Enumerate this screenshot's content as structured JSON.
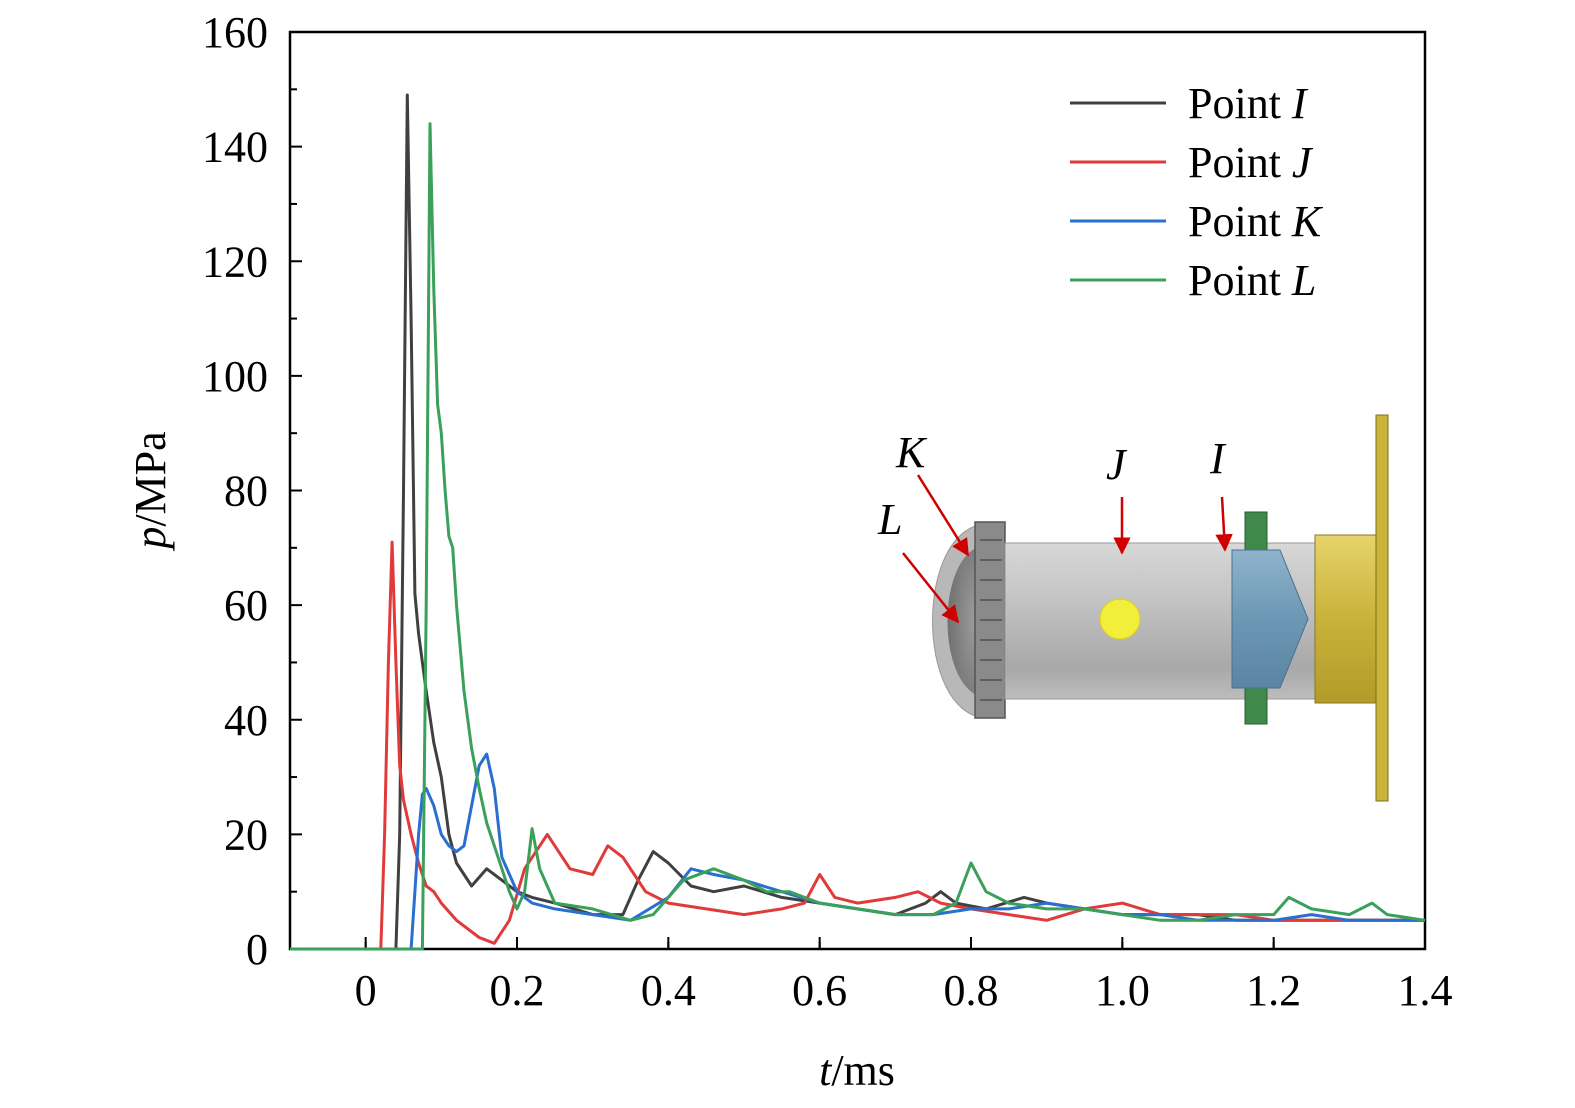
{
  "chart_data": {
    "type": "line",
    "xlabel": {
      "var": "t",
      "unit": "/ms"
    },
    "ylabel": {
      "var": "p",
      "unit": "/MPa"
    },
    "xlim": [
      -0.1,
      1.4
    ],
    "ylim": [
      0,
      160
    ],
    "x_ticks": [
      0,
      0.2,
      0.4,
      0.6,
      0.8,
      1.0,
      1.2,
      1.4
    ],
    "x_tick_labels": [
      "0",
      "0.2",
      "0.4",
      "0.6",
      "0.8",
      "1.0",
      "1.2",
      "1.4"
    ],
    "y_ticks": [
      0,
      20,
      40,
      60,
      80,
      100,
      120,
      140,
      160
    ],
    "y_tick_labels": [
      "0",
      "20",
      "40",
      "60",
      "80",
      "100",
      "120",
      "140",
      "160"
    ],
    "legend_position": "top-right",
    "grid": false,
    "series": [
      {
        "name": "Point I",
        "legend_prefix": "Point ",
        "legend_var": "I",
        "color": "#404040",
        "x": [
          -0.1,
          0.04,
          0.045,
          0.05,
          0.055,
          0.06,
          0.065,
          0.07,
          0.08,
          0.09,
          0.1,
          0.11,
          0.12,
          0.14,
          0.16,
          0.18,
          0.2,
          0.22,
          0.25,
          0.3,
          0.34,
          0.36,
          0.38,
          0.4,
          0.43,
          0.46,
          0.5,
          0.55,
          0.6,
          0.65,
          0.7,
          0.74,
          0.76,
          0.78,
          0.82,
          0.87,
          0.9,
          0.95,
          1.0,
          1.05,
          1.1,
          1.15,
          1.2,
          1.25,
          1.3,
          1.35,
          1.4
        ],
        "y": [
          0,
          0,
          20,
          80,
          149,
          110,
          62,
          55,
          45,
          36,
          30,
          20,
          15,
          11,
          14,
          12,
          10,
          9,
          8,
          6,
          6,
          12,
          17,
          15,
          11,
          10,
          11,
          9,
          8,
          7,
          6,
          8,
          10,
          8,
          7,
          9,
          8,
          7,
          6,
          6,
          6,
          5,
          5,
          5,
          5,
          5,
          5
        ]
      },
      {
        "name": "Point J",
        "legend_prefix": "Point ",
        "legend_var": "J",
        "color": "#e03a3a",
        "x": [
          -0.1,
          0.02,
          0.025,
          0.03,
          0.035,
          0.04,
          0.045,
          0.05,
          0.06,
          0.07,
          0.08,
          0.09,
          0.1,
          0.12,
          0.15,
          0.17,
          0.19,
          0.21,
          0.24,
          0.27,
          0.3,
          0.32,
          0.34,
          0.37,
          0.4,
          0.45,
          0.5,
          0.55,
          0.58,
          0.6,
          0.62,
          0.65,
          0.7,
          0.73,
          0.76,
          0.8,
          0.85,
          0.9,
          0.95,
          1.0,
          1.05,
          1.1,
          1.15,
          1.2,
          1.25,
          1.3,
          1.35,
          1.4
        ],
        "y": [
          0,
          0,
          20,
          50,
          71,
          50,
          32,
          26,
          20,
          15,
          11,
          10,
          8,
          5,
          2,
          1,
          5,
          14,
          20,
          14,
          13,
          18,
          16,
          10,
          8,
          7,
          6,
          7,
          8,
          13,
          9,
          8,
          9,
          10,
          8,
          7,
          6,
          5,
          7,
          8,
          6,
          6,
          6,
          5,
          5,
          5,
          5,
          5
        ]
      },
      {
        "name": "Point K",
        "legend_prefix": "Point ",
        "legend_var": "K",
        "color": "#2a6fcf",
        "x": [
          -0.1,
          0.06,
          0.065,
          0.07,
          0.075,
          0.08,
          0.09,
          0.1,
          0.11,
          0.12,
          0.13,
          0.14,
          0.15,
          0.16,
          0.17,
          0.18,
          0.2,
          0.22,
          0.25,
          0.3,
          0.35,
          0.4,
          0.43,
          0.46,
          0.5,
          0.55,
          0.6,
          0.65,
          0.7,
          0.75,
          0.8,
          0.85,
          0.9,
          0.95,
          1.0,
          1.05,
          1.1,
          1.15,
          1.2,
          1.25,
          1.3,
          1.35,
          1.4
        ],
        "y": [
          0,
          0,
          10,
          20,
          27,
          28,
          25,
          20,
          18,
          17,
          18,
          25,
          32,
          34,
          28,
          16,
          10,
          8,
          7,
          6,
          5,
          9,
          14,
          13,
          12,
          10,
          8,
          7,
          6,
          6,
          7,
          7,
          8,
          7,
          6,
          6,
          5,
          5,
          5,
          6,
          5,
          5,
          5
        ]
      },
      {
        "name": "Point L",
        "legend_prefix": "Point ",
        "legend_var": "L",
        "color": "#3aa05a",
        "x": [
          -0.1,
          0.075,
          0.08,
          0.085,
          0.09,
          0.095,
          0.1,
          0.105,
          0.11,
          0.115,
          0.12,
          0.13,
          0.14,
          0.15,
          0.16,
          0.17,
          0.18,
          0.19,
          0.2,
          0.21,
          0.22,
          0.23,
          0.25,
          0.3,
          0.35,
          0.38,
          0.42,
          0.46,
          0.5,
          0.53,
          0.56,
          0.6,
          0.65,
          0.7,
          0.75,
          0.78,
          0.8,
          0.82,
          0.85,
          0.9,
          0.95,
          1.0,
          1.05,
          1.1,
          1.15,
          1.2,
          1.22,
          1.25,
          1.3,
          1.33,
          1.35,
          1.4
        ],
        "y": [
          0,
          0,
          60,
          144,
          115,
          95,
          90,
          80,
          72,
          70,
          60,
          45,
          35,
          28,
          22,
          18,
          14,
          10,
          7,
          10,
          21,
          14,
          8,
          7,
          5,
          6,
          12,
          14,
          12,
          10,
          10,
          8,
          7,
          6,
          6,
          8,
          15,
          10,
          8,
          7,
          7,
          6,
          5,
          5,
          6,
          6,
          9,
          7,
          6,
          8,
          6,
          5
        ]
      }
    ],
    "inset": {
      "labels": [
        "K",
        "L",
        "J",
        "I"
      ]
    }
  }
}
